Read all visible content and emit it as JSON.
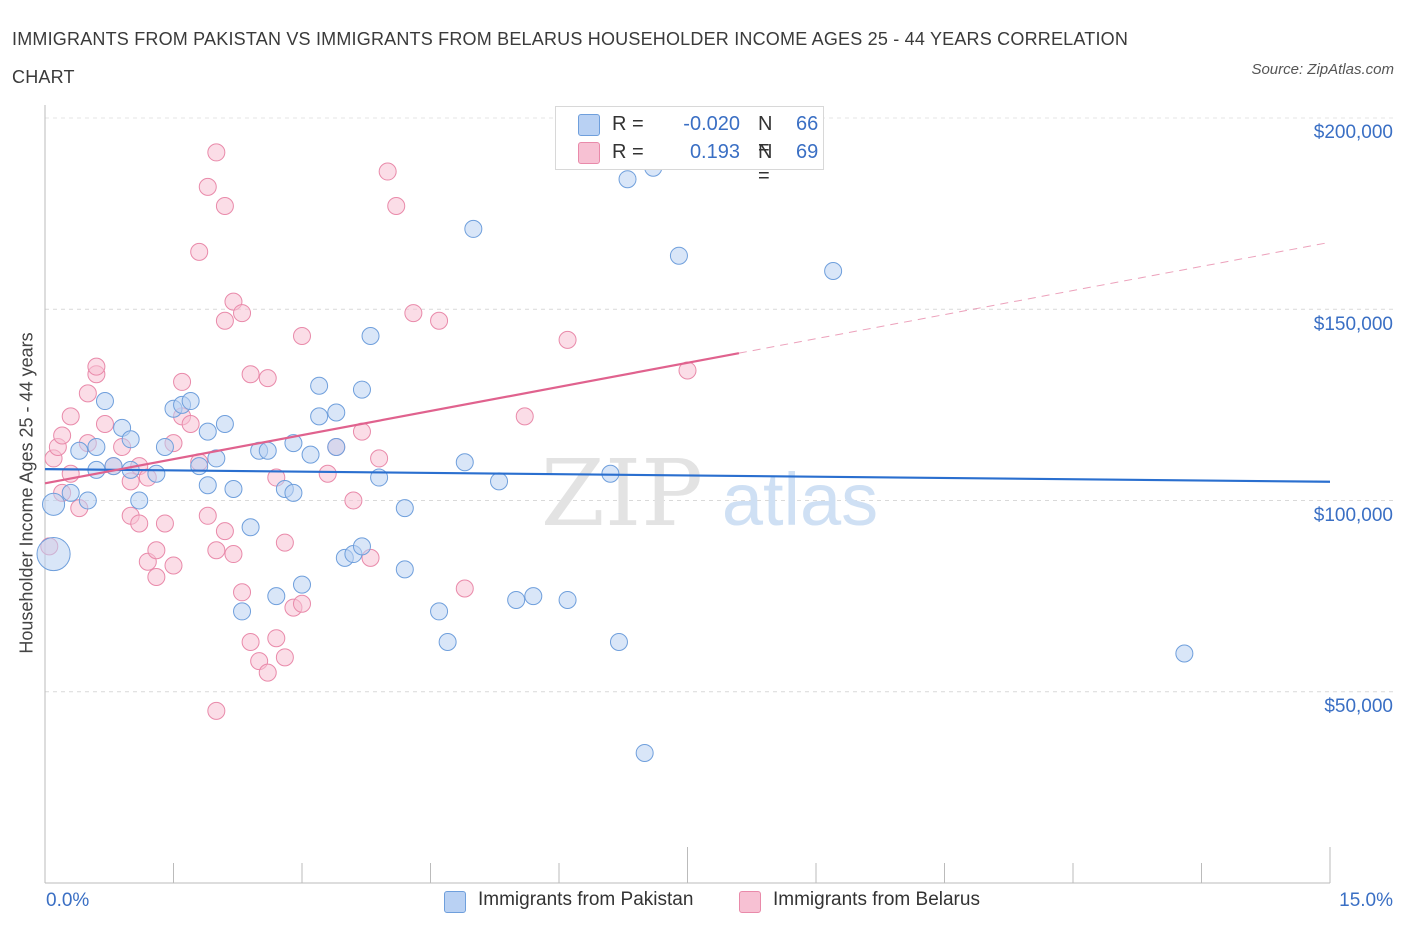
{
  "title": "IMMIGRANTS FROM PAKISTAN VS IMMIGRANTS FROM BELARUS HOUSEHOLDER INCOME AGES 25 - 44 YEARS CORRELATION CHART",
  "source": "Source: ZipAtlas.com",
  "watermark": {
    "zip": "ZIP",
    "atlas": "atlas"
  },
  "legend_top": {
    "rows": [
      {
        "r_label": "R =",
        "r_value": "-0.020",
        "n_label": "N =",
        "n_value": "66"
      },
      {
        "r_label": "R =",
        "r_value": "0.193",
        "n_label": "N =",
        "n_value": "69"
      }
    ]
  },
  "axis": {
    "ylabel": "Householder Income Ages 25 - 44 years",
    "ytick_labels": [
      "$200,000",
      "$150,000",
      "$100,000",
      "$50,000"
    ],
    "x_min_label": "0.0%",
    "x_max_label": "15.0%"
  },
  "colors": {
    "pakistan_fill": "#b9d1f3",
    "pakistan_stroke": "#6f9fdc",
    "pakistan_line": "#2a6fcf",
    "belarus_fill": "#f7c1d3",
    "belarus_stroke": "#e98aaa",
    "belarus_line": "#e0628e",
    "tick_text": "#3a6fc4"
  },
  "chart_data": {
    "type": "scatter",
    "title": "IMMIGRANTS FROM PAKISTAN VS IMMIGRANTS FROM BELARUS HOUSEHOLDER INCOME AGES 25 - 44 YEARS CORRELATION CHART",
    "xlabel": "",
    "ylabel": "Householder Income Ages 25 - 44 years",
    "xlim": [
      0,
      15
    ],
    "ylim": [
      0,
      200000
    ],
    "yticks": [
      50000,
      100000,
      150000,
      200000
    ],
    "grid": true,
    "legend_position": "bottom",
    "series": [
      {
        "name": "Immigrants from Pakistan",
        "R": -0.02,
        "N": 66,
        "trend": {
          "x": [
            0,
            15
          ],
          "y": [
            108200,
            104900
          ]
        },
        "points": [
          [
            0.1,
            99000,
            2
          ],
          [
            0.1,
            86000,
            3
          ],
          [
            0.3,
            102000,
            1
          ],
          [
            0.4,
            113000,
            1
          ],
          [
            0.5,
            100000,
            1
          ],
          [
            0.6,
            114000,
            1
          ],
          [
            0.6,
            108000,
            1
          ],
          [
            0.7,
            126000,
            1
          ],
          [
            0.8,
            109000,
            1
          ],
          [
            0.9,
            119000,
            1
          ],
          [
            1.0,
            108000,
            1
          ],
          [
            1.0,
            116000,
            1
          ],
          [
            1.1,
            100000,
            1
          ],
          [
            1.3,
            107000,
            1
          ],
          [
            1.4,
            114000,
            1
          ],
          [
            1.5,
            124000,
            1
          ],
          [
            1.6,
            125000,
            1
          ],
          [
            1.7,
            126000,
            1
          ],
          [
            1.8,
            109000,
            1
          ],
          [
            1.9,
            118000,
            1
          ],
          [
            1.9,
            104000,
            1
          ],
          [
            2.0,
            111000,
            1
          ],
          [
            2.1,
            120000,
            1
          ],
          [
            2.2,
            103000,
            1
          ],
          [
            2.3,
            71000,
            1
          ],
          [
            2.4,
            93000,
            1
          ],
          [
            2.5,
            113000,
            1
          ],
          [
            2.6,
            113000,
            1
          ],
          [
            2.7,
            75000,
            1
          ],
          [
            2.8,
            103000,
            1
          ],
          [
            2.9,
            115000,
            1
          ],
          [
            2.9,
            102000,
            1
          ],
          [
            3.0,
            78000,
            1
          ],
          [
            3.1,
            112000,
            1
          ],
          [
            3.2,
            122000,
            1
          ],
          [
            3.2,
            130000,
            1
          ],
          [
            3.4,
            123000,
            1
          ],
          [
            3.4,
            114000,
            1
          ],
          [
            3.5,
            85000,
            1
          ],
          [
            3.6,
            86000,
            1
          ],
          [
            3.7,
            88000,
            1
          ],
          [
            3.7,
            129000,
            1
          ],
          [
            3.8,
            143000,
            1
          ],
          [
            3.9,
            106000,
            1
          ],
          [
            4.2,
            82000,
            1
          ],
          [
            4.2,
            98000,
            1
          ],
          [
            4.6,
            71000,
            1
          ],
          [
            4.7,
            63000,
            1
          ],
          [
            4.9,
            110000,
            1
          ],
          [
            5.0,
            171000,
            1
          ],
          [
            5.3,
            105000,
            1
          ],
          [
            5.5,
            74000,
            1
          ],
          [
            5.7,
            75000,
            1
          ],
          [
            6.1,
            74000,
            1
          ],
          [
            6.6,
            107000,
            1
          ],
          [
            6.7,
            63000,
            1
          ],
          [
            6.8,
            184000,
            1
          ],
          [
            7.0,
            34000,
            1
          ],
          [
            7.1,
            187000,
            1
          ],
          [
            7.4,
            164000,
            1
          ],
          [
            9.2,
            160000,
            1
          ],
          [
            13.3,
            60000,
            1
          ]
        ]
      },
      {
        "name": "Immigrants from Belarus",
        "R": 0.193,
        "N": 69,
        "trend": {
          "x": [
            0,
            15
          ],
          "y": [
            104500,
            167500
          ]
        },
        "trend_solid_to_x": 8.1,
        "points": [
          [
            0.05,
            88000,
            1
          ],
          [
            0.1,
            111000,
            1
          ],
          [
            0.15,
            114000,
            1
          ],
          [
            0.2,
            117000,
            1
          ],
          [
            0.2,
            102000,
            1
          ],
          [
            0.3,
            107000,
            1
          ],
          [
            0.3,
            122000,
            1
          ],
          [
            0.4,
            98000,
            1
          ],
          [
            0.5,
            115000,
            1
          ],
          [
            0.5,
            128000,
            1
          ],
          [
            0.6,
            133000,
            1
          ],
          [
            0.6,
            135000,
            1
          ],
          [
            0.7,
            120000,
            1
          ],
          [
            0.8,
            109000,
            1
          ],
          [
            0.9,
            114000,
            1
          ],
          [
            1.0,
            105000,
            1
          ],
          [
            1.1,
            109000,
            1
          ],
          [
            1.2,
            106000,
            1
          ],
          [
            1.0,
            96000,
            1
          ],
          [
            1.1,
            94000,
            1
          ],
          [
            1.2,
            84000,
            1
          ],
          [
            1.3,
            87000,
            1
          ],
          [
            1.3,
            80000,
            1
          ],
          [
            1.4,
            94000,
            1
          ],
          [
            1.5,
            83000,
            1
          ],
          [
            1.5,
            115000,
            1
          ],
          [
            1.6,
            122000,
            1
          ],
          [
            1.6,
            131000,
            1
          ],
          [
            1.7,
            120000,
            1
          ],
          [
            1.8,
            110000,
            1
          ],
          [
            1.9,
            96000,
            1
          ],
          [
            2.0,
            87000,
            1
          ],
          [
            2.1,
            92000,
            1
          ],
          [
            2.1,
            147000,
            1
          ],
          [
            2.2,
            86000,
            1
          ],
          [
            2.3,
            76000,
            1
          ],
          [
            2.4,
            63000,
            1
          ],
          [
            2.5,
            58000,
            1
          ],
          [
            2.6,
            55000,
            1
          ],
          [
            2.7,
            64000,
            1
          ],
          [
            2.8,
            59000,
            1
          ],
          [
            2.9,
            72000,
            1
          ],
          [
            3.0,
            73000,
            1
          ],
          [
            1.8,
            165000,
            1
          ],
          [
            1.9,
            182000,
            1
          ],
          [
            2.0,
            191000,
            1
          ],
          [
            2.1,
            177000,
            1
          ],
          [
            2.2,
            152000,
            1
          ],
          [
            2.3,
            149000,
            1
          ],
          [
            2.4,
            133000,
            1
          ],
          [
            2.6,
            132000,
            1
          ],
          [
            2.7,
            106000,
            1
          ],
          [
            2.8,
            89000,
            1
          ],
          [
            3.0,
            143000,
            1
          ],
          [
            3.3,
            107000,
            1
          ],
          [
            3.4,
            114000,
            1
          ],
          [
            3.6,
            100000,
            1
          ],
          [
            3.7,
            118000,
            1
          ],
          [
            3.8,
            85000,
            1
          ],
          [
            3.9,
            111000,
            1
          ],
          [
            4.0,
            186000,
            1
          ],
          [
            4.1,
            177000,
            1
          ],
          [
            4.3,
            149000,
            1
          ],
          [
            2.0,
            45000,
            1
          ],
          [
            4.6,
            147000,
            1
          ],
          [
            4.9,
            77000,
            1
          ],
          [
            5.6,
            122000,
            1
          ],
          [
            6.1,
            142000,
            1
          ],
          [
            7.5,
            134000,
            1
          ]
        ]
      }
    ]
  },
  "bottom_legend": [
    {
      "label": "Immigrants from Pakistan"
    },
    {
      "label": "Immigrants from Belarus"
    }
  ]
}
